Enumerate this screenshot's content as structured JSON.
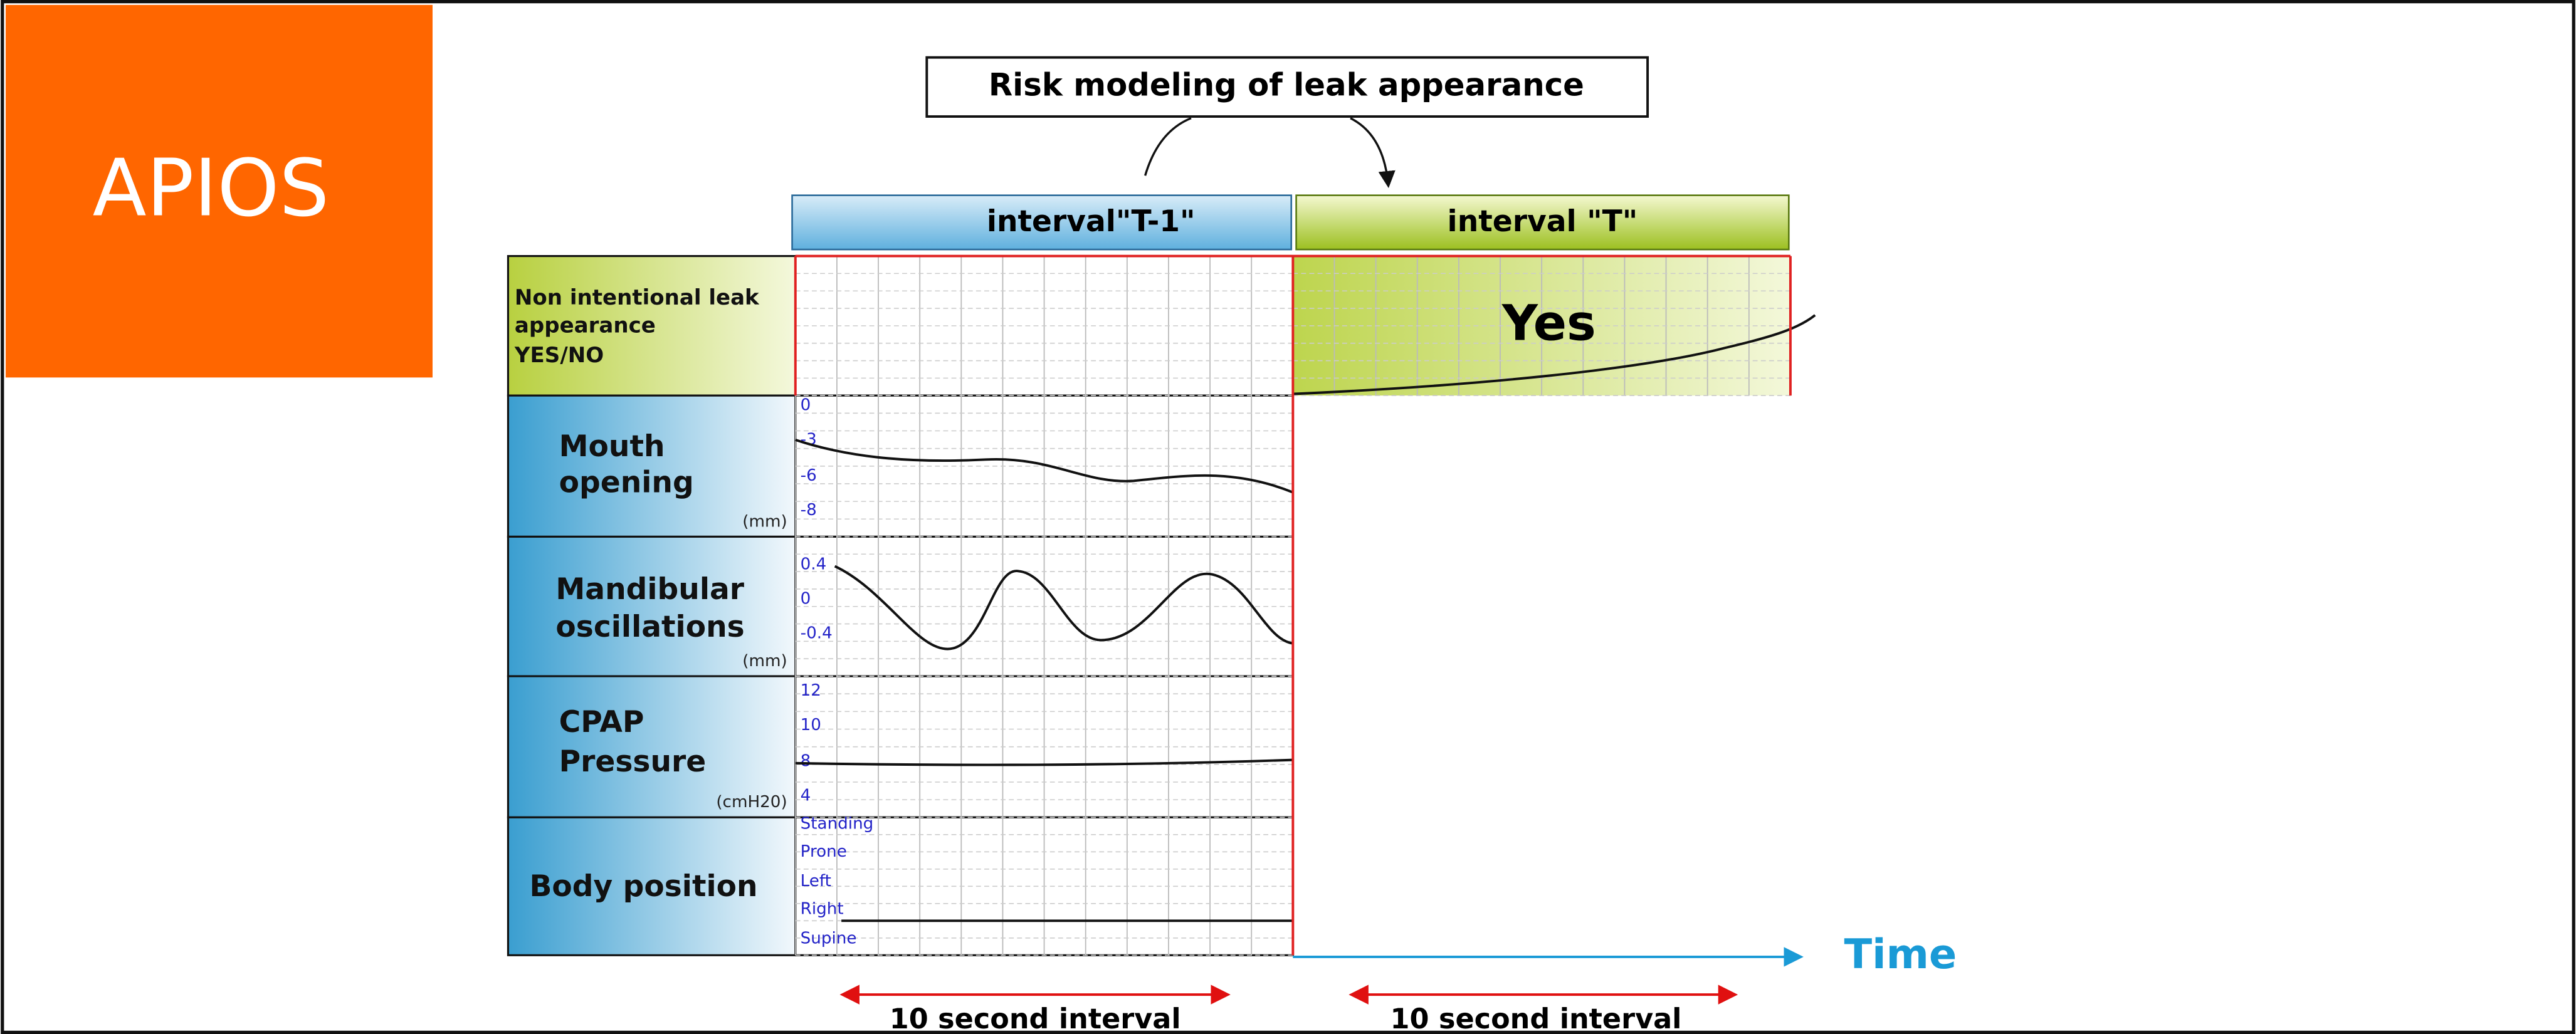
{
  "logo": "APIOS",
  "title": "Risk modeling of leak appearance",
  "intervals": [
    "interval\"T-1\"",
    "interval \"T\""
  ],
  "rows": [
    {
      "label_lines": [
        "Non intentional leak",
        "appearance",
        "YES/NO"
      ]
    },
    {
      "label_lines": [
        "Mouth",
        "opening"
      ],
      "unit": "(mm)",
      "scale": [
        "0",
        "-3",
        "-6",
        "-8"
      ]
    },
    {
      "label_lines": [
        "Mandibular",
        "oscillations"
      ],
      "unit": "(mm)",
      "scale": [
        "0.4",
        "0",
        "-0.4"
      ]
    },
    {
      "label_lines": [
        "CPAP",
        "Pressure"
      ],
      "unit": "(cmH20)",
      "scale": [
        "12",
        "10",
        "8",
        "4"
      ]
    },
    {
      "label_lines": [
        "Body position"
      ],
      "scale": [
        "Standing",
        "Prone",
        "Left",
        "Right",
        "Supine"
      ]
    }
  ],
  "result": "Yes",
  "time_label": "Time",
  "interval_notes": [
    "10 second interval",
    "10 second interval"
  ]
}
